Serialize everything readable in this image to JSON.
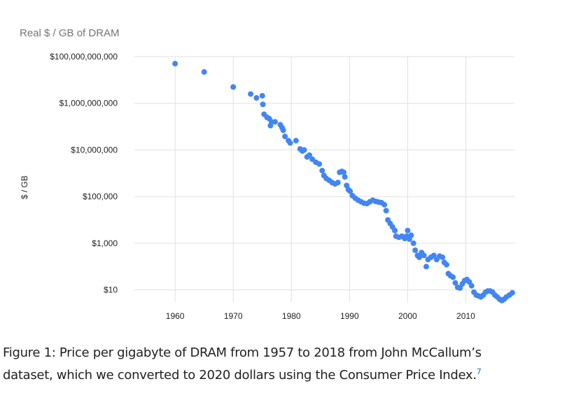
{
  "chart_data": {
    "type": "scatter",
    "title": "Real $ / GB of DRAM",
    "ylabel": "$ / GB",
    "xlabel": "",
    "y_scale": "log10",
    "xlim": [
      1953,
      2018.5
    ],
    "ylim": [
      3,
      100000000000
    ],
    "x_ticks": [
      1960,
      1970,
      1980,
      1990,
      2000,
      2010
    ],
    "x_tick_labels": [
      "1960",
      "1970",
      "1980",
      "1990",
      "2000",
      "2010"
    ],
    "y_ticks": [
      10,
      1000,
      100000,
      10000000,
      1000000000,
      100000000000
    ],
    "y_tick_labels": [
      "$10",
      "$1,000",
      "$100,000",
      "$10,000,000",
      "$1,000,000,000",
      "$100,000,000,000"
    ],
    "grid": true,
    "color": "#4285f4",
    "series": [
      {
        "points": [
          [
            1960,
            50000000000
          ],
          [
            1965,
            22000000000
          ],
          [
            1970,
            5000000000
          ],
          [
            1973,
            2500000000
          ],
          [
            1974,
            1700000000
          ],
          [
            1975,
            2100000000
          ],
          [
            1975.1,
            900000000
          ],
          [
            1975.3,
            340000000
          ],
          [
            1975.8,
            250000000
          ],
          [
            1976.2,
            220000000
          ],
          [
            1976.4,
            110000000
          ],
          [
            1976.6,
            160000000
          ],
          [
            1977.2,
            160000000
          ],
          [
            1978.1,
            120000000
          ],
          [
            1978.4,
            90000000
          ],
          [
            1978.6,
            70000000
          ],
          [
            1978.9,
            38000000
          ],
          [
            1979.5,
            25000000
          ],
          [
            1979.8,
            20000000
          ],
          [
            1980.8,
            25000000
          ],
          [
            1981.5,
            11000000
          ],
          [
            1981.9,
            9000000
          ],
          [
            1982.2,
            10000000
          ],
          [
            1982.7,
            5000000
          ],
          [
            1983.1,
            6000000
          ],
          [
            1983.6,
            4000000
          ],
          [
            1984.2,
            3000000
          ],
          [
            1984.8,
            2500000
          ],
          [
            1985.3,
            1300000
          ],
          [
            1985.6,
            800000
          ],
          [
            1986.0,
            600000
          ],
          [
            1986.5,
            500000
          ],
          [
            1987.0,
            400000
          ],
          [
            1987.5,
            350000
          ],
          [
            1988.0,
            400000
          ],
          [
            1988.3,
            1100000
          ],
          [
            1988.7,
            1200000
          ],
          [
            1989.0,
            1100000
          ],
          [
            1989.2,
            700000
          ],
          [
            1989.5,
            300000
          ],
          [
            1989.8,
            200000
          ],
          [
            1990.1,
            170000
          ],
          [
            1990.5,
            110000
          ],
          [
            1991.0,
            85000
          ],
          [
            1991.5,
            70000
          ],
          [
            1992.0,
            60000
          ],
          [
            1992.5,
            52000
          ],
          [
            1993.0,
            50000
          ],
          [
            1993.5,
            60000
          ],
          [
            1994.0,
            70000
          ],
          [
            1994.5,
            62000
          ],
          [
            1995.0,
            58000
          ],
          [
            1995.5,
            55000
          ],
          [
            1996.0,
            45000
          ],
          [
            1996.3,
            25000
          ],
          [
            1996.6,
            10000
          ],
          [
            1997.0,
            7000
          ],
          [
            1997.4,
            5000
          ],
          [
            1997.8,
            3500
          ],
          [
            1998.0,
            2000
          ],
          [
            1998.5,
            1800
          ],
          [
            1999.0,
            2000
          ],
          [
            1999.5,
            1600
          ],
          [
            1999.8,
            2000
          ],
          [
            2000.0,
            3500
          ],
          [
            2000.3,
            1500
          ],
          [
            2000.6,
            2200
          ],
          [
            2001.0,
            1000
          ],
          [
            2001.3,
            500
          ],
          [
            2001.7,
            300
          ],
          [
            2002.0,
            250
          ],
          [
            2002.4,
            400
          ],
          [
            2002.8,
            300
          ],
          [
            2003.2,
            100
          ],
          [
            2003.5,
            200
          ],
          [
            2004.0,
            250
          ],
          [
            2004.5,
            300
          ],
          [
            2005.0,
            200
          ],
          [
            2005.5,
            280
          ],
          [
            2006.0,
            250
          ],
          [
            2006.3,
            150
          ],
          [
            2006.7,
            120
          ],
          [
            2007.0,
            50
          ],
          [
            2007.4,
            40
          ],
          [
            2007.8,
            35
          ],
          [
            2008.2,
            20
          ],
          [
            2008.6,
            13
          ],
          [
            2009.0,
            12
          ],
          [
            2009.4,
            18
          ],
          [
            2009.8,
            25
          ],
          [
            2010.2,
            28
          ],
          [
            2010.6,
            22
          ],
          [
            2011.0,
            15
          ],
          [
            2011.4,
            8
          ],
          [
            2011.8,
            6
          ],
          [
            2012.2,
            5.5
          ],
          [
            2012.6,
            5
          ],
          [
            2013.0,
            6
          ],
          [
            2013.4,
            8
          ],
          [
            2013.8,
            9
          ],
          [
            2014.2,
            9
          ],
          [
            2014.6,
            8
          ],
          [
            2015.0,
            6
          ],
          [
            2015.4,
            5
          ],
          [
            2015.8,
            4
          ],
          [
            2016.2,
            3.5
          ],
          [
            2016.6,
            4
          ],
          [
            2017.0,
            5
          ],
          [
            2017.5,
            6
          ],
          [
            2018.0,
            7.5
          ]
        ]
      }
    ]
  },
  "caption": {
    "line1": "Figure 1: Price per gigabyte of DRAM from 1957 to 2018 from John McCallum’s",
    "line2": "dataset, which we converted to 2020 dollars using the Consumer Price Index.",
    "footnote": "7"
  }
}
